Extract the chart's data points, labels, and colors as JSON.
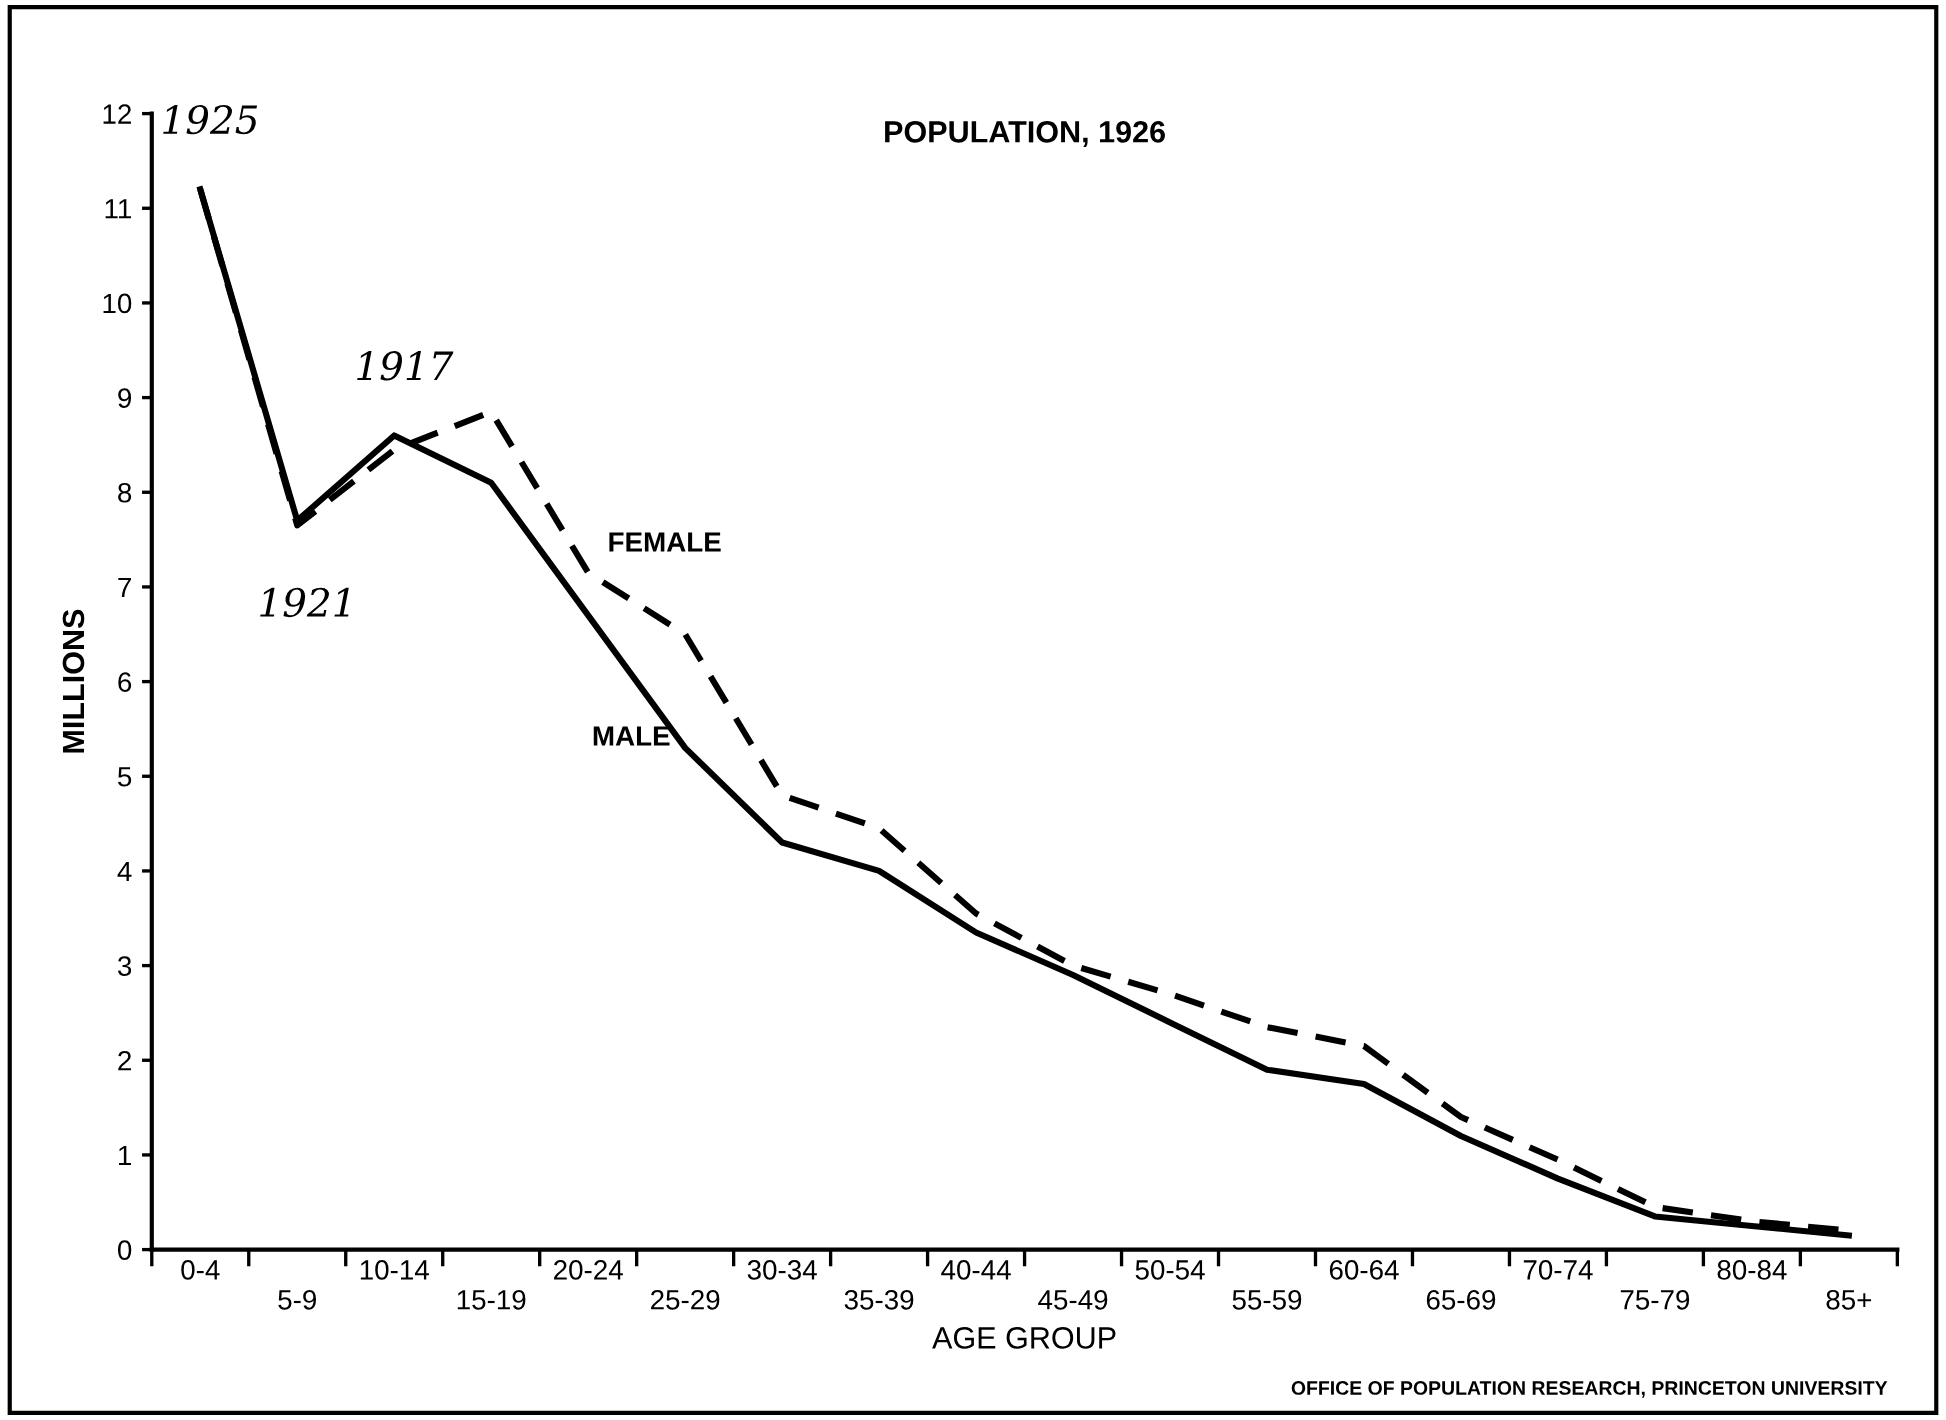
{
  "chart_data": {
    "type": "line",
    "title": "POPULATION, 1926",
    "xlabel": "AGE GROUP",
    "ylabel": "MILLIONS",
    "categories": [
      "0-4",
      "5-9",
      "10-14",
      "15-19",
      "20-24",
      "25-29",
      "30-34",
      "35-39",
      "40-44",
      "45-49",
      "50-54",
      "55-59",
      "60-64",
      "65-69",
      "70-74",
      "75-79",
      "80-84",
      "85+"
    ],
    "series": [
      {
        "name": "MALE",
        "color": "#000000",
        "line_style": "solid",
        "values": [
          11.2,
          7.7,
          8.6,
          8.1,
          6.7,
          5.3,
          4.3,
          4.0,
          3.35,
          2.9,
          2.4,
          1.9,
          1.75,
          1.2,
          0.75,
          0.35,
          0.25,
          0.15
        ]
      },
      {
        "name": "FEMALE",
        "color": "#000000",
        "line_style": "dashed",
        "values": [
          11.2,
          7.65,
          8.45,
          8.85,
          7.15,
          6.5,
          4.8,
          4.45,
          3.55,
          3.0,
          2.7,
          2.35,
          2.15,
          1.4,
          0.95,
          0.45,
          0.3,
          0.2
        ]
      }
    ],
    "ylim": [
      0,
      12
    ],
    "yticks": [
      0,
      1,
      2,
      3,
      4,
      5,
      6,
      7,
      8,
      9,
      10,
      11,
      12
    ],
    "grid": false,
    "legend": false,
    "marker": "none",
    "annotations": [
      {
        "text": "1925",
        "x": "0-4",
        "y": 11.2
      },
      {
        "text": "1921",
        "x": "5-9",
        "y": 7.7
      },
      {
        "text": "1917",
        "x": "10-14",
        "y": 8.6
      },
      "OFFICE OF POPULATION RESEARCH, PRINCETON UNIVERSITY"
    ]
  }
}
